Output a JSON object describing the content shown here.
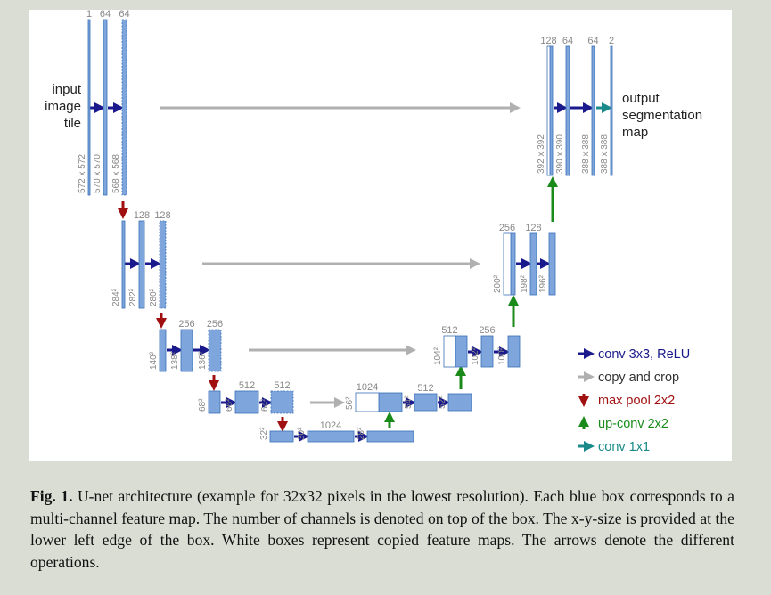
{
  "diagram": {
    "input_label": [
      "input",
      "image",
      "tile"
    ],
    "output_label": [
      "output",
      "segmentation",
      "map"
    ],
    "feature_maps": [
      {
        "channels": "1",
        "size": "572 x 572",
        "stage": "contracting-1"
      },
      {
        "channels": "64",
        "size": "570 x 570",
        "stage": "contracting-1"
      },
      {
        "channels": "64",
        "size": "568 x 568",
        "stage": "contracting-1"
      },
      {
        "channels": "",
        "size": "284²",
        "stage": "contracting-2"
      },
      {
        "channels": "128",
        "size": "282²",
        "stage": "contracting-2"
      },
      {
        "channels": "128",
        "size": "280²",
        "stage": "contracting-2"
      },
      {
        "channels": "",
        "size": "140²",
        "stage": "contracting-3"
      },
      {
        "channels": "256",
        "size": "138²",
        "stage": "contracting-3"
      },
      {
        "channels": "256",
        "size": "136²",
        "stage": "contracting-3"
      },
      {
        "channels": "",
        "size": "68²",
        "stage": "contracting-4"
      },
      {
        "channels": "512",
        "size": "66²",
        "stage": "contracting-4"
      },
      {
        "channels": "512",
        "size": "64²",
        "stage": "contracting-4"
      },
      {
        "channels": "",
        "size": "32²",
        "stage": "bottleneck"
      },
      {
        "channels": "1024",
        "size": "30²",
        "stage": "bottleneck"
      },
      {
        "channels": "",
        "size": "28²",
        "stage": "bottleneck"
      },
      {
        "channels": "1024",
        "size": "56²",
        "stage": "expanding-4"
      },
      {
        "channels": "512",
        "size": "54²",
        "stage": "expanding-4"
      },
      {
        "channels": "",
        "size": "52²",
        "stage": "expanding-4"
      },
      {
        "channels": "512",
        "size": "104²",
        "stage": "expanding-3"
      },
      {
        "channels": "256",
        "size": "102²",
        "stage": "expanding-3"
      },
      {
        "channels": "",
        "size": "100²",
        "stage": "expanding-3"
      },
      {
        "channels": "256",
        "size": "200²",
        "stage": "expanding-2"
      },
      {
        "channels": "128",
        "size": "198²",
        "stage": "expanding-2"
      },
      {
        "channels": "",
        "size": "196²",
        "stage": "expanding-2"
      },
      {
        "channels": "128",
        "size": "392 x 392",
        "stage": "expanding-1"
      },
      {
        "channels": "64",
        "size": "390 x 390",
        "stage": "expanding-1"
      },
      {
        "channels": "64",
        "size": "388 x 388",
        "stage": "expanding-1"
      },
      {
        "channels": "2",
        "size": "388 x 388",
        "stage": "expanding-1"
      }
    ],
    "legend": [
      {
        "label": "conv 3x3, ReLU",
        "color": "#1a1a8c",
        "icon": "arrow-right-icon"
      },
      {
        "label": "copy and crop",
        "color": "#b0b0b0",
        "icon": "arrow-right-icon"
      },
      {
        "label": "max pool 2x2",
        "color": "#a01010",
        "icon": "arrow-down-icon"
      },
      {
        "label": "up-conv 2x2",
        "color": "#1a8a1a",
        "icon": "arrow-up-icon"
      },
      {
        "label": "conv 1x1",
        "color": "#1a8a8a",
        "icon": "arrow-right-icon"
      }
    ],
    "colors": {
      "box_fill": "#7ea6dc",
      "box_stroke": "#3a6fb5",
      "label_gray": "#888888",
      "text": "#222222"
    }
  },
  "caption": {
    "label": "Fig. 1.",
    "text": " U-net architecture (example for 32x32 pixels in the lowest resolution). Each blue box corresponds to a multi-channel feature map. The number of channels is denoted on top of the box. The x-y-size is provided at the lower left edge of the box. White boxes represent copied feature maps. The arrows denote the different operations."
  }
}
